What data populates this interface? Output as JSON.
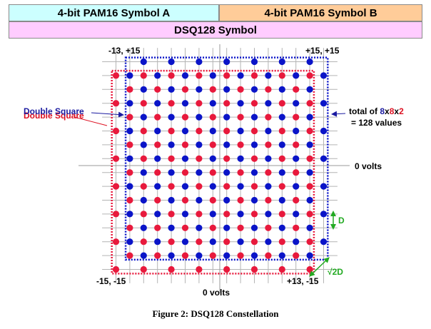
{
  "header": {
    "symbol_a": "4-bit PAM16 Symbol A",
    "symbol_b": "4-bit PAM16 Symbol B",
    "dsq_symbol": "DSQ128 Symbol"
  },
  "labels": {
    "top_left": "-13, +15",
    "top_right": "+15, +15",
    "bottom_left": "-15, -15",
    "bottom_right": "+13, -15",
    "zero_volts_h": "0 volts",
    "zero_volts_v": "0 volts",
    "double_square_red": "Double Square",
    "double_square_blue": "Double Square",
    "total_prefix": "total of ",
    "total_8a": "8",
    "total_x1": "x",
    "total_8b": "8",
    "total_x2": "x",
    "total_2": "2",
    "total_line2": "= 128 values",
    "d_label": "D",
    "sqrt2d_label": "√2D"
  },
  "caption": "Figure 2: DSQ128 Constellation",
  "colors": {
    "red": "#e8193c",
    "blue": "#0a14c8",
    "green": "#22aa22",
    "grid": "#b4b4b4",
    "blue_text": "#1a1aa0",
    "red_text": "#dd1122"
  },
  "constellation": {
    "blue_points": "x,y in {-13,-9,...,+15} for odd-indexed grid pattern (x-y)%4==2",
    "red_points": "x,y in {-15,-11,...,+13} pattern (x-y)%4==0",
    "x_range": [
      -15,
      15
    ],
    "y_range": [
      -15,
      15
    ]
  }
}
